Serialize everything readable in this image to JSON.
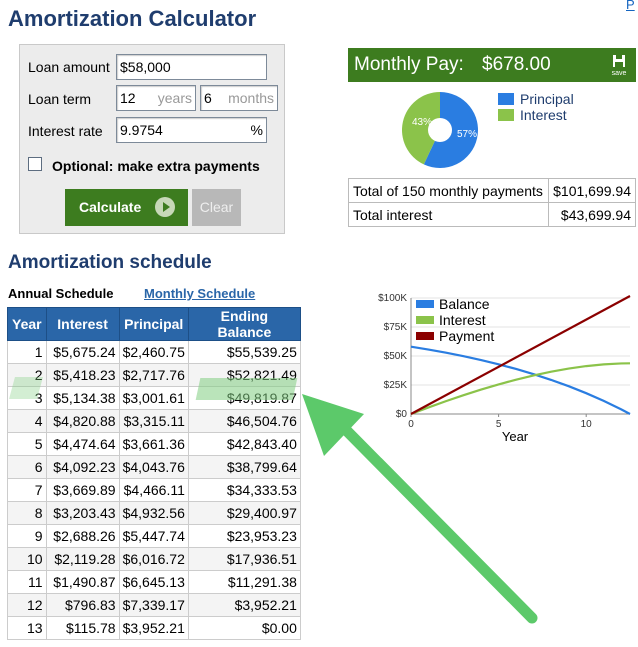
{
  "page": {
    "title": "Amortization Calculator",
    "corner_link": "P",
    "schedule_heading": "Amortization schedule"
  },
  "form": {
    "loan_amount_label": "Loan amount",
    "loan_amount_value": "$58,000",
    "loan_term_label": "Loan term",
    "term_years_value": "12",
    "term_years_unit": "years",
    "term_months_value": "6",
    "term_months_unit": "months",
    "interest_rate_label": "Interest rate",
    "interest_rate_value": "9.9754",
    "interest_rate_unit": "%",
    "extra_payments_label": "Optional: make extra payments",
    "extra_payments_checked": false,
    "calculate_label": "Calculate",
    "clear_label": "Clear"
  },
  "results": {
    "monthly_pay_label": "Monthly Pay:",
    "monthly_pay_value": "$678.00",
    "save_label": "save",
    "pie": {
      "principal_pct_label": "57%",
      "interest_pct_label": "43%",
      "principal_pct": 57,
      "interest_pct": 43,
      "principal_color": "#2a7de1",
      "interest_color": "#8bc34a"
    },
    "legend": [
      {
        "label": "Principal",
        "color": "#2a7de1"
      },
      {
        "label": "Interest",
        "color": "#8bc34a"
      }
    ],
    "totals": [
      {
        "label": "Total of 150 monthly payments",
        "value": "$101,699.94"
      },
      {
        "label": "Total interest",
        "value": "$43,699.94"
      }
    ]
  },
  "schedule": {
    "tabs": {
      "annual": "Annual Schedule",
      "monthly": "Monthly Schedule"
    },
    "columns": [
      "Year",
      "Interest",
      "Principal",
      "Ending Balance"
    ],
    "rows": [
      [
        "1",
        "$5,675.24",
        "$2,460.75",
        "$55,539.25"
      ],
      [
        "2",
        "$5,418.23",
        "$2,717.76",
        "$52,821.49"
      ],
      [
        "3",
        "$5,134.38",
        "$3,001.61",
        "$49,819.87"
      ],
      [
        "4",
        "$4,820.88",
        "$3,315.11",
        "$46,504.76"
      ],
      [
        "5",
        "$4,474.64",
        "$3,661.36",
        "$42,843.40"
      ],
      [
        "6",
        "$4,092.23",
        "$4,043.76",
        "$38,799.64"
      ],
      [
        "7",
        "$3,669.89",
        "$4,466.11",
        "$34,333.53"
      ],
      [
        "8",
        "$3,203.43",
        "$4,932.56",
        "$29,400.97"
      ],
      [
        "9",
        "$2,688.26",
        "$5,447.74",
        "$23,953.23"
      ],
      [
        "10",
        "$2,119.28",
        "$6,016.72",
        "$17,936.51"
      ],
      [
        "11",
        "$1,490.87",
        "$6,645.13",
        "$11,291.38"
      ],
      [
        "12",
        "$796.83",
        "$7,339.17",
        "$3,952.21"
      ],
      [
        "13",
        "$115.78",
        "$3,952.21",
        "$0.00"
      ]
    ]
  },
  "chart_data": {
    "type": "line",
    "xlabel": "Year",
    "x_ticks": [
      "0",
      "5",
      "10"
    ],
    "y_ticks": [
      "$0",
      "$25K",
      "$50K",
      "$75K",
      "$100K"
    ],
    "xlim": [
      0,
      12.5
    ],
    "ylim": [
      0,
      100000
    ],
    "legend_position": "top-left",
    "series": [
      {
        "name": "Balance",
        "color": "#2a7de1",
        "x": [
          0,
          1,
          2,
          3,
          4,
          5,
          6,
          7,
          8,
          9,
          10,
          11,
          12,
          12.5
        ],
        "y": [
          58000,
          55539.25,
          52821.49,
          49819.87,
          46504.76,
          42843.4,
          38799.64,
          34333.53,
          29400.97,
          23953.23,
          17936.51,
          11291.38,
          3952.21,
          0
        ]
      },
      {
        "name": "Interest",
        "color": "#8bc34a",
        "x": [
          0,
          1,
          2,
          3,
          4,
          5,
          6,
          7,
          8,
          9,
          10,
          11,
          12,
          12.5
        ],
        "y": [
          0,
          5675.24,
          11093.47,
          16227.85,
          21048.73,
          25523.37,
          29615.6,
          33285.49,
          36488.92,
          39177.18,
          41296.46,
          42787.33,
          43584.16,
          43699.94
        ]
      },
      {
        "name": "Payment",
        "color": "#8b0000",
        "x": [
          0,
          12.5
        ],
        "y": [
          0,
          101699.94
        ]
      }
    ]
  },
  "annotation": {
    "arrow_color": "#4cc45a",
    "highlight_row": "3"
  }
}
